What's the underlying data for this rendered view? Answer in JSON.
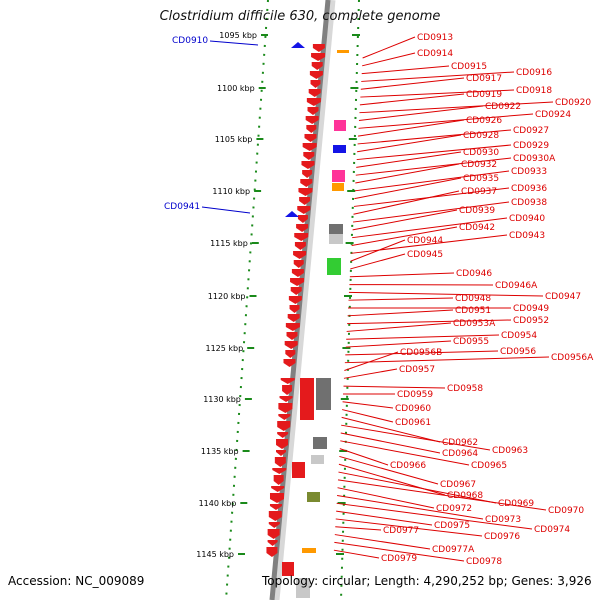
{
  "title": "Clostridium difficile 630, complete genome",
  "footer": {
    "accession": "Accession: NC_009089",
    "summary": "Topology: circular; Length: 4,290,252 bp; Genes: 3,926"
  },
  "colors": {
    "backbone": "#808080",
    "scale": "#1a8a1a",
    "gene_forward": "#e41a1c",
    "label_right": "#dd0000",
    "label_left": "#0000cc",
    "marker_blue": "#1414e6",
    "orange": "#ff9900",
    "pink": "#ff3399",
    "grey": "#707070",
    "light_grey": "#c8c8c8",
    "green": "#33cc33",
    "olive": "#7a8a30"
  },
  "ruler": {
    "unit": "kbp",
    "labels": [
      "1095 kbp",
      "1100 kbp",
      "1105 kbp",
      "1110 kbp",
      "1115 kbp",
      "1120 kbp",
      "1125 kbp",
      "1130 kbp",
      "1135 kbp",
      "1140 kbp",
      "1145 kbp"
    ]
  },
  "genes_left": [
    "CD0910",
    "CD0941"
  ],
  "genes_right": [
    "CD0913",
    "CD0914",
    "CD0915",
    "CD0916",
    "CD0917",
    "CD0918",
    "CD0919",
    "CD0920",
    "CD0922",
    "CD0924",
    "CD0926",
    "CD0927",
    "CD0928",
    "CD0929",
    "CD0930",
    "CD0930A",
    "CD0932",
    "CD0933",
    "CD0935",
    "CD0936",
    "CD0937",
    "CD0938",
    "CD0939",
    "CD0940",
    "CD0942",
    "CD0943",
    "CD0944",
    "CD0945",
    "CD0946",
    "CD0946A",
    "CD0947",
    "CD0948",
    "CD0949",
    "CD0951",
    "CD0952",
    "CD0953A",
    "CD0954",
    "CD0955",
    "CD0956",
    "CD0956A",
    "CD0956B",
    "CD0957",
    "CD0958",
    "CD0959",
    "CD0960",
    "CD0961",
    "CD0962",
    "CD0963",
    "CD0964",
    "CD0965",
    "CD0966",
    "CD0967",
    "CD0968",
    "CD0969",
    "CD0970",
    "CD0972",
    "CD0973",
    "CD0974",
    "CD0975",
    "CD0976",
    "CD0977",
    "CD0977A",
    "CD0978",
    "CD0979"
  ]
}
